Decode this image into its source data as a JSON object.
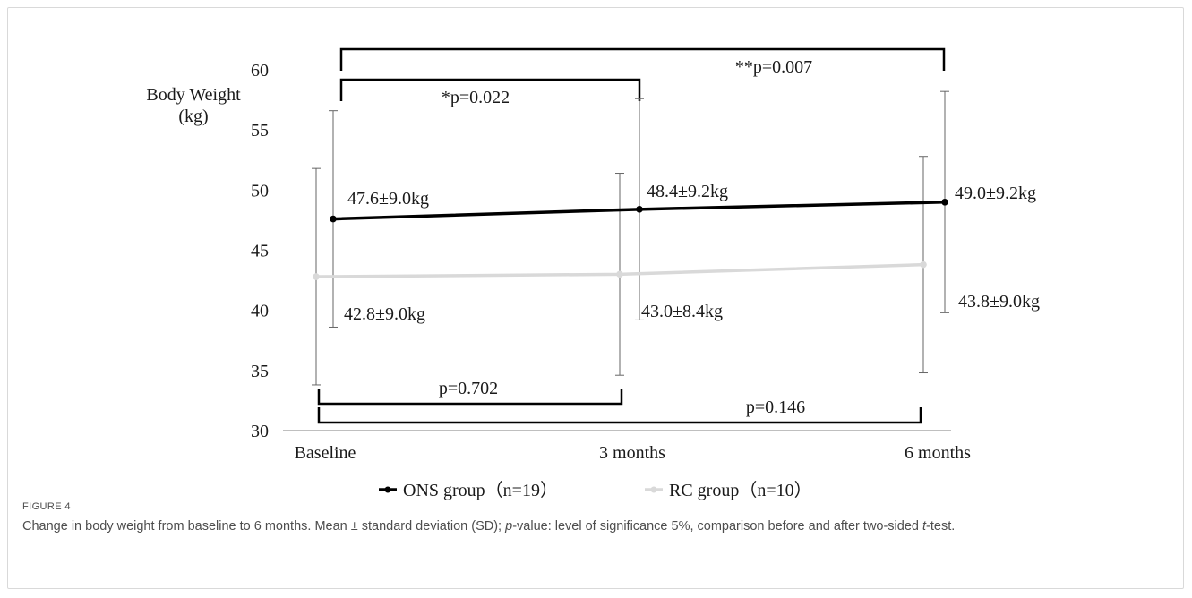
{
  "chart_data": {
    "type": "line",
    "ylabel_line1": "Body Weight",
    "ylabel_line2": "(kg)",
    "categories": [
      "Baseline",
      "3 months",
      "6 months"
    ],
    "ylim": [
      30,
      60
    ],
    "yticks": [
      "30",
      "35",
      "40",
      "45",
      "50",
      "55",
      "60"
    ],
    "grid": false,
    "legend_position": "bottom",
    "series": [
      {
        "name": "ONS group（n=19）",
        "color": "#000000",
        "values": [
          47.6,
          48.4,
          49.0
        ],
        "sd": [
          9.0,
          9.2,
          9.2
        ],
        "labels": [
          "47.6±9.0kg",
          "48.4±9.2kg",
          "49.0±9.2kg"
        ]
      },
      {
        "name": "RC group（n=10）",
        "color": "#d9d9d9",
        "values": [
          42.8,
          43.0,
          43.8
        ],
        "sd": [
          9.0,
          8.4,
          9.0
        ],
        "labels": [
          "42.8±9.0kg",
          "43.0±8.4kg",
          "43.8±9.0kg"
        ]
      }
    ],
    "annotations": {
      "ons_baseline_6m": "**p=0.007",
      "ons_baseline_3m": "*p=0.022",
      "rc_baseline_3m": "p=0.702",
      "rc_baseline_6m": "p=0.146"
    }
  },
  "caption": {
    "label": "FIGURE 4",
    "text_before_p": "Change in body weight from baseline to 6 months. Mean ± standard deviation (SD); ",
    "p_italic": "p",
    "text_mid": "-value: level of significance 5%, comparison before and after two-sided ",
    "t_italic": "t",
    "text_after": "-test."
  }
}
